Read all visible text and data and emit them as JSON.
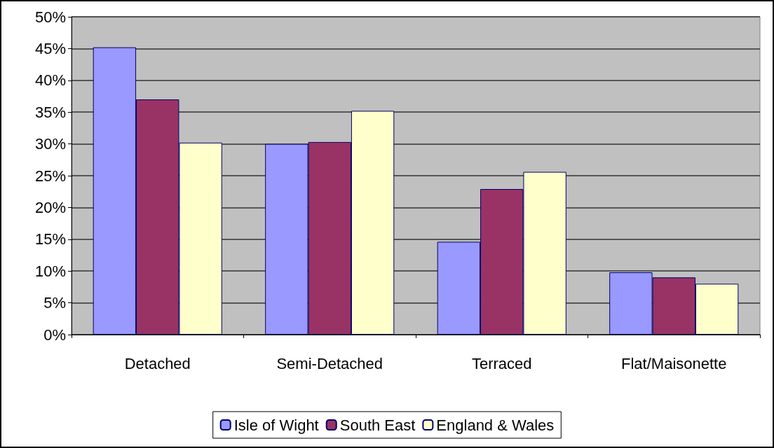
{
  "chart_data": {
    "type": "bar",
    "categories": [
      "Detached",
      "Semi-Detached",
      "Terraced",
      "Flat/Maisonette"
    ],
    "series": [
      {
        "name": "Isle of Wight",
        "color": "#9999ff",
        "values": [
          45.2,
          30.0,
          14.6,
          9.8
        ]
      },
      {
        "name": "South East",
        "color": "#993366",
        "values": [
          37.0,
          30.3,
          22.9,
          9.0
        ]
      },
      {
        "name": "England & Wales",
        "color": "#ffffcc",
        "values": [
          30.2,
          35.2,
          25.6,
          8.0
        ]
      }
    ],
    "ylim": [
      0,
      50
    ],
    "yticks": [
      {
        "value": 0,
        "label": "0%"
      },
      {
        "value": 5,
        "label": "5%"
      },
      {
        "value": 10,
        "label": "10%"
      },
      {
        "value": 15,
        "label": "15%"
      },
      {
        "value": 20,
        "label": "20%"
      },
      {
        "value": 25,
        "label": "25%"
      },
      {
        "value": 30,
        "label": "30%"
      },
      {
        "value": 35,
        "label": "35%"
      },
      {
        "value": 40,
        "label": "40%"
      },
      {
        "value": 45,
        "label": "45%"
      },
      {
        "value": 50,
        "label": "50%"
      }
    ],
    "grid": "y",
    "legend": "bottom"
  }
}
